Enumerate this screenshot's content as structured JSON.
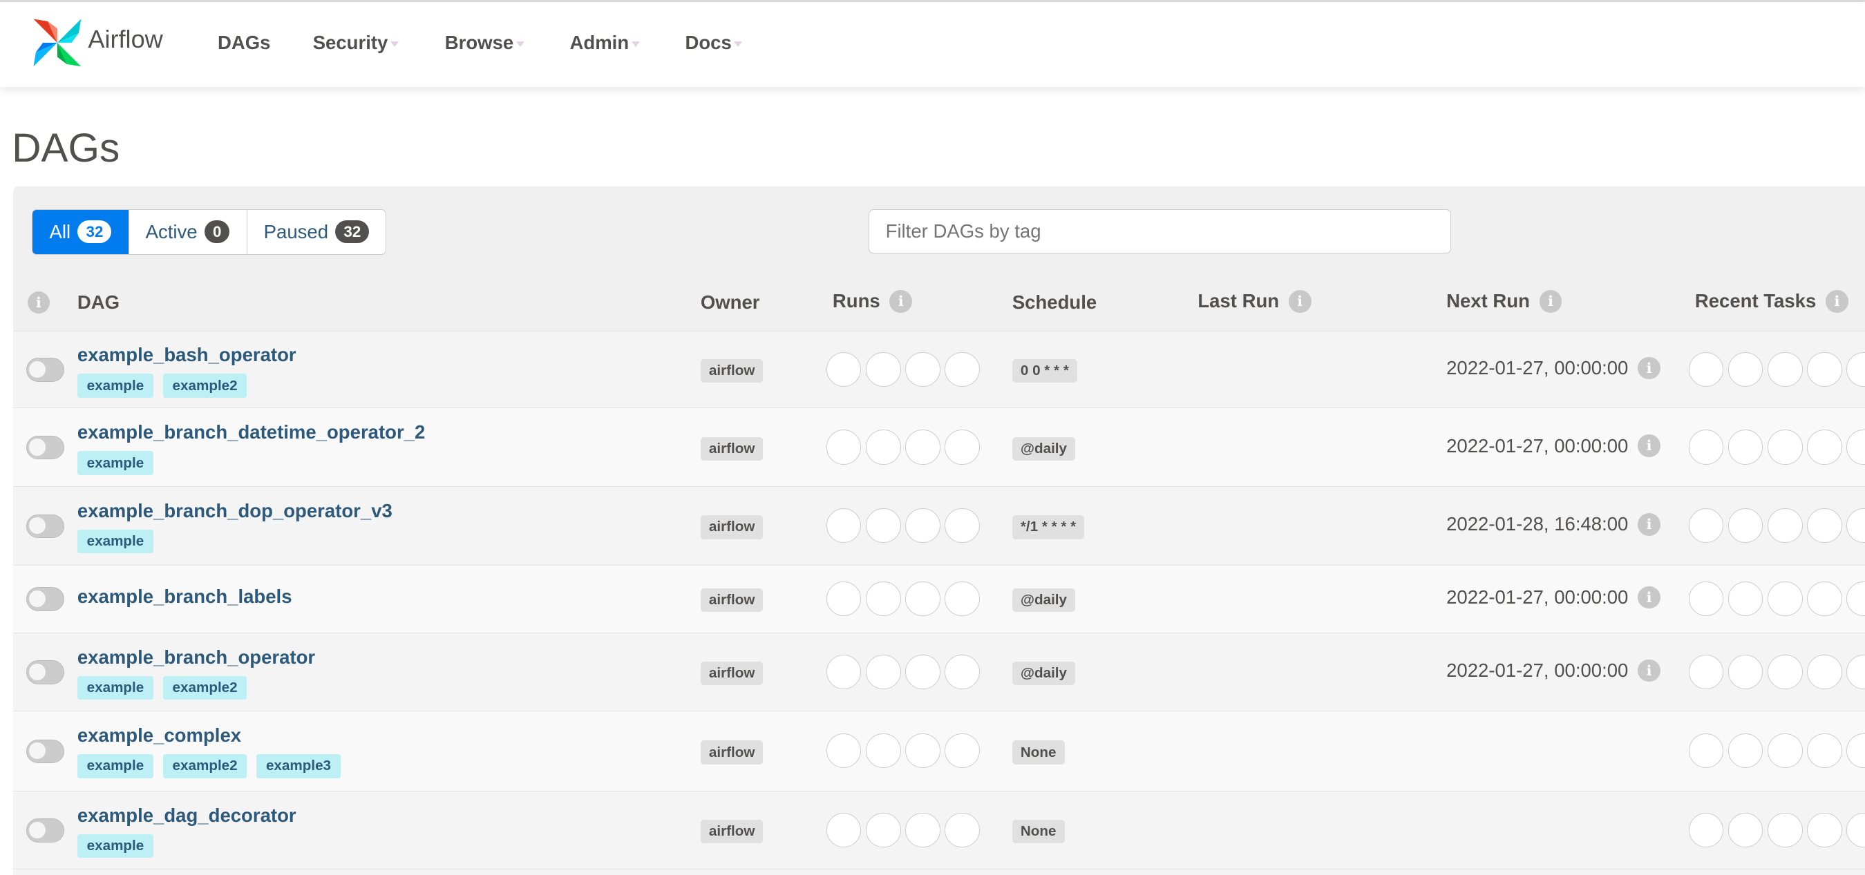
{
  "nav": {
    "brand": "Airflow",
    "items": [
      {
        "label": "DAGs"
      },
      {
        "label": "Security"
      },
      {
        "label": "Browse"
      },
      {
        "label": "Admin"
      },
      {
        "label": "Docs"
      }
    ]
  },
  "page": {
    "title": "DAGs"
  },
  "filters": {
    "all": {
      "label": "All",
      "count": "32"
    },
    "active": {
      "label": "Active",
      "count": "0"
    },
    "paused": {
      "label": "Paused",
      "count": "32"
    },
    "tag_placeholder": "Filter DAGs by tag"
  },
  "columns": {
    "dag": "DAG",
    "owner": "Owner",
    "runs": "Runs",
    "schedule": "Schedule",
    "last_run": "Last Run",
    "next_run": "Next Run",
    "recent_tasks": "Recent Tasks"
  },
  "rows": [
    {
      "name": "example_bash_operator",
      "tags": [
        "example",
        "example2"
      ],
      "owner": "airflow",
      "schedule": "0 0 * * *",
      "next_run": "2022-01-27, 00:00:00",
      "paused": true
    },
    {
      "name": "example_branch_datetime_operator_2",
      "tags": [
        "example"
      ],
      "owner": "airflow",
      "schedule": "@daily",
      "next_run": "2022-01-27, 00:00:00",
      "paused": true
    },
    {
      "name": "example_branch_dop_operator_v3",
      "tags": [
        "example"
      ],
      "owner": "airflow",
      "schedule": "*/1 * * * *",
      "next_run": "2022-01-28, 16:48:00",
      "paused": true
    },
    {
      "name": "example_branch_labels",
      "tags": [],
      "owner": "airflow",
      "schedule": "@daily",
      "next_run": "2022-01-27, 00:00:00",
      "paused": true
    },
    {
      "name": "example_branch_operator",
      "tags": [
        "example",
        "example2"
      ],
      "owner": "airflow",
      "schedule": "@daily",
      "next_run": "2022-01-27, 00:00:00",
      "paused": true
    },
    {
      "name": "example_complex",
      "tags": [
        "example",
        "example2",
        "example3"
      ],
      "owner": "airflow",
      "schedule": "None",
      "next_run": "",
      "paused": true
    },
    {
      "name": "example_dag_decorator",
      "tags": [
        "example"
      ],
      "owner": "airflow",
      "schedule": "None",
      "next_run": "",
      "paused": true
    }
  ]
}
